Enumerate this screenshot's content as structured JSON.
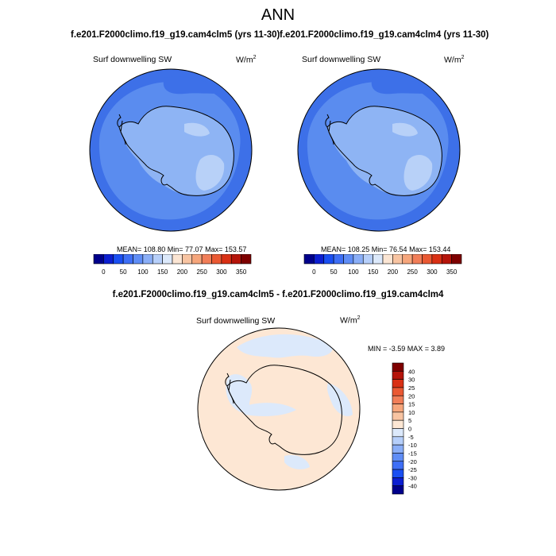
{
  "page": {
    "title": "ANN"
  },
  "panels": [
    {
      "case_title": "f.e201.F2000climo.f19_g19.cam4clm5 (yrs 11-30)",
      "variable": "Surf downwelling SW",
      "units": "W/m",
      "units_exp": "2",
      "stats_text": "MEAN= 108.80  Min=  77.07  Max= 153.57"
    },
    {
      "case_title": "f.e201.F2000climo.f19_g19.cam4clm4 (yrs 11-30)",
      "variable": "Surf downwelling SW",
      "units": "W/m",
      "units_exp": "2",
      "stats_text": "MEAN= 108.25  Min=  76.54  Max= 153.44"
    }
  ],
  "diff_panel": {
    "case_title": "f.e201.F2000climo.f19_g19.cam4clm5 - f.e201.F2000climo.f19_g19.cam4clm4",
    "variable": "Surf downwelling SW",
    "units": "W/m",
    "units_exp": "2",
    "stats_text": "MIN =  -3.59 MAX =   3.89"
  },
  "colorbars": {
    "abs": {
      "colors": [
        "#00008b",
        "#0c1fd1",
        "#1a4ff2",
        "#3e6ff6",
        "#5f8df6",
        "#8aaef7",
        "#b6cffa",
        "#dce9fb",
        "#fbe5d3",
        "#f8c4a2",
        "#f6a67c",
        "#f17e58",
        "#ea5933",
        "#d93014",
        "#b5140a",
        "#7e0000"
      ],
      "tick_labels": [
        "0",
        "50",
        "100",
        "150",
        "200",
        "250",
        "300",
        "350"
      ]
    },
    "diff": {
      "colors": [
        "#00008b",
        "#0c1fd1",
        "#1a4ff2",
        "#3e6ff6",
        "#5f8df6",
        "#8aaef7",
        "#b6cffa",
        "#dce9fb",
        "#fde7d4",
        "#f8c4a2",
        "#f6a67c",
        "#f17e58",
        "#ea5933",
        "#d93014",
        "#b5140a",
        "#7e0000"
      ],
      "tick_labels": [
        "40",
        "30",
        "25",
        "20",
        "15",
        "10",
        "5",
        "0",
        "-5",
        "-10",
        "-15",
        "-20",
        "-25",
        "-30",
        "-40"
      ]
    }
  },
  "map_colors": {
    "ocean_outer": "#3d70e8",
    "ocean_mid": "#5a8cef",
    "land_low": "#8eb4f4",
    "land_high": "#b8d1f8",
    "diff_ocean": "#fde7d4",
    "diff_neg": "#dce9fb"
  },
  "chart_data": [
    {
      "type": "heatmap",
      "title": "f.e201.F2000climo.f19_g19.cam4clm5 (yrs 11-30)",
      "variable": "Surf downwelling SW",
      "units": "W/m^2",
      "projection": "polar stereographic (south)",
      "colorbar_range": [
        0,
        350
      ],
      "colorbar_ticks": [
        0,
        50,
        100,
        150,
        200,
        250,
        300,
        350
      ],
      "mean": 108.8,
      "min": 77.07,
      "max": 153.57
    },
    {
      "type": "heatmap",
      "title": "f.e201.F2000climo.f19_g19.cam4clm4 (yrs 11-30)",
      "variable": "Surf downwelling SW",
      "units": "W/m^2",
      "projection": "polar stereographic (south)",
      "colorbar_range": [
        0,
        350
      ],
      "colorbar_ticks": [
        0,
        50,
        100,
        150,
        200,
        250,
        300,
        350
      ],
      "mean": 108.25,
      "min": 76.54,
      "max": 153.44
    },
    {
      "type": "heatmap",
      "title": "f.e201.F2000climo.f19_g19.cam4clm5 - f.e201.F2000climo.f19_g19.cam4clm4",
      "variable": "Surf downwelling SW",
      "units": "W/m^2",
      "projection": "polar stereographic (south)",
      "colorbar_levels": [
        -40,
        -30,
        -25,
        -20,
        -15,
        -10,
        -5,
        0,
        5,
        10,
        15,
        20,
        25,
        30,
        40
      ],
      "min": -3.59,
      "max": 3.89
    }
  ]
}
